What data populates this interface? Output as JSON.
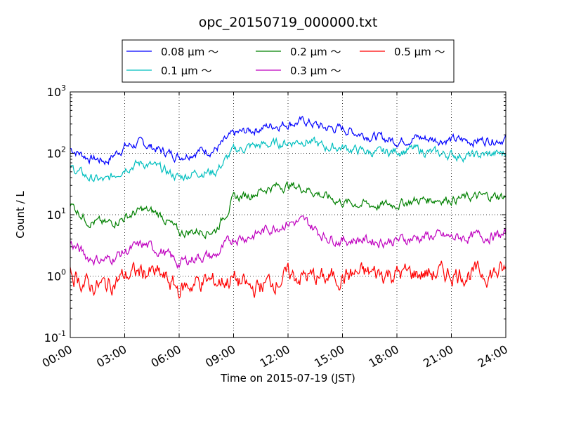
{
  "chart_data": {
    "type": "line",
    "title": "opc_20150719_000000.txt",
    "xlabel": "Time on 2015-07-19 (JST)",
    "ylabel": "Count / L",
    "y_scale": "log",
    "xlim": [
      "00:00",
      "24:00"
    ],
    "ylim": [
      0.1,
      1000
    ],
    "grid": true,
    "legend_position": "top-center",
    "x_ticks": [
      "00:00",
      "03:00",
      "06:00",
      "09:00",
      "12:00",
      "15:00",
      "18:00",
      "21:00",
      "24:00"
    ],
    "y_ticks": [
      {
        "base": "10",
        "exp": "-1",
        "value": 0.1
      },
      {
        "base": "10",
        "exp": "0",
        "value": 1
      },
      {
        "base": "10",
        "exp": "1",
        "value": 10
      },
      {
        "base": "10",
        "exp": "2",
        "value": 100
      },
      {
        "base": "10",
        "exp": "3",
        "value": 1000
      }
    ],
    "x": [
      "00:00",
      "01:00",
      "02:00",
      "03:00",
      "04:00",
      "05:00",
      "06:00",
      "07:00",
      "08:00",
      "09:00",
      "10:00",
      "11:00",
      "12:00",
      "13:00",
      "14:00",
      "15:00",
      "16:00",
      "17:00",
      "18:00",
      "19:00",
      "20:00",
      "21:00",
      "22:00",
      "23:00",
      "24:00"
    ],
    "series": [
      {
        "name": "0.08 μm ～",
        "color": "#0000ff",
        "noise": 0.06,
        "values": [
          120,
          85,
          75,
          130,
          145,
          110,
          90,
          110,
          115,
          200,
          240,
          280,
          310,
          330,
          260,
          250,
          210,
          180,
          160,
          180,
          170,
          165,
          160,
          165,
          175
        ]
      },
      {
        "name": "0.1 μm ～",
        "color": "#00bfbf",
        "noise": 0.06,
        "values": [
          60,
          40,
          35,
          60,
          70,
          55,
          40,
          50,
          50,
          110,
          130,
          140,
          150,
          165,
          125,
          125,
          110,
          100,
          110,
          115,
          100,
          95,
          90,
          95,
          100
        ]
      },
      {
        "name": "0.2 μm ～",
        "color": "#008000",
        "noise": 0.06,
        "values": [
          15,
          8,
          7,
          9,
          12,
          10,
          5,
          5.5,
          5.5,
          18,
          22,
          28,
          30,
          27,
          20,
          16,
          15,
          14,
          15,
          17,
          18,
          18,
          19,
          20,
          20
        ]
      },
      {
        "name": "0.3 μm ～",
        "color": "#bf00bf",
        "noise": 0.07,
        "values": [
          3.5,
          2,
          1.8,
          2.5,
          3.2,
          2.6,
          1.6,
          2.1,
          2.1,
          4.2,
          4.5,
          6,
          7.5,
          7.5,
          4.5,
          3.8,
          4,
          3.7,
          3.8,
          4.2,
          4.5,
          4.2,
          4.3,
          4.5,
          4.6
        ]
      },
      {
        "name": "0.5 μm ～",
        "color": "#ff0000",
        "noise": 0.12,
        "values": [
          1.1,
          0.7,
          0.7,
          1.0,
          1.2,
          1.0,
          0.6,
          0.8,
          0.8,
          0.9,
          0.6,
          0.8,
          1.0,
          1.0,
          0.9,
          1.0,
          1.1,
          1.1,
          1.1,
          1.1,
          1.1,
          1.1,
          1.1,
          1.1,
          1.2
        ]
      }
    ]
  }
}
